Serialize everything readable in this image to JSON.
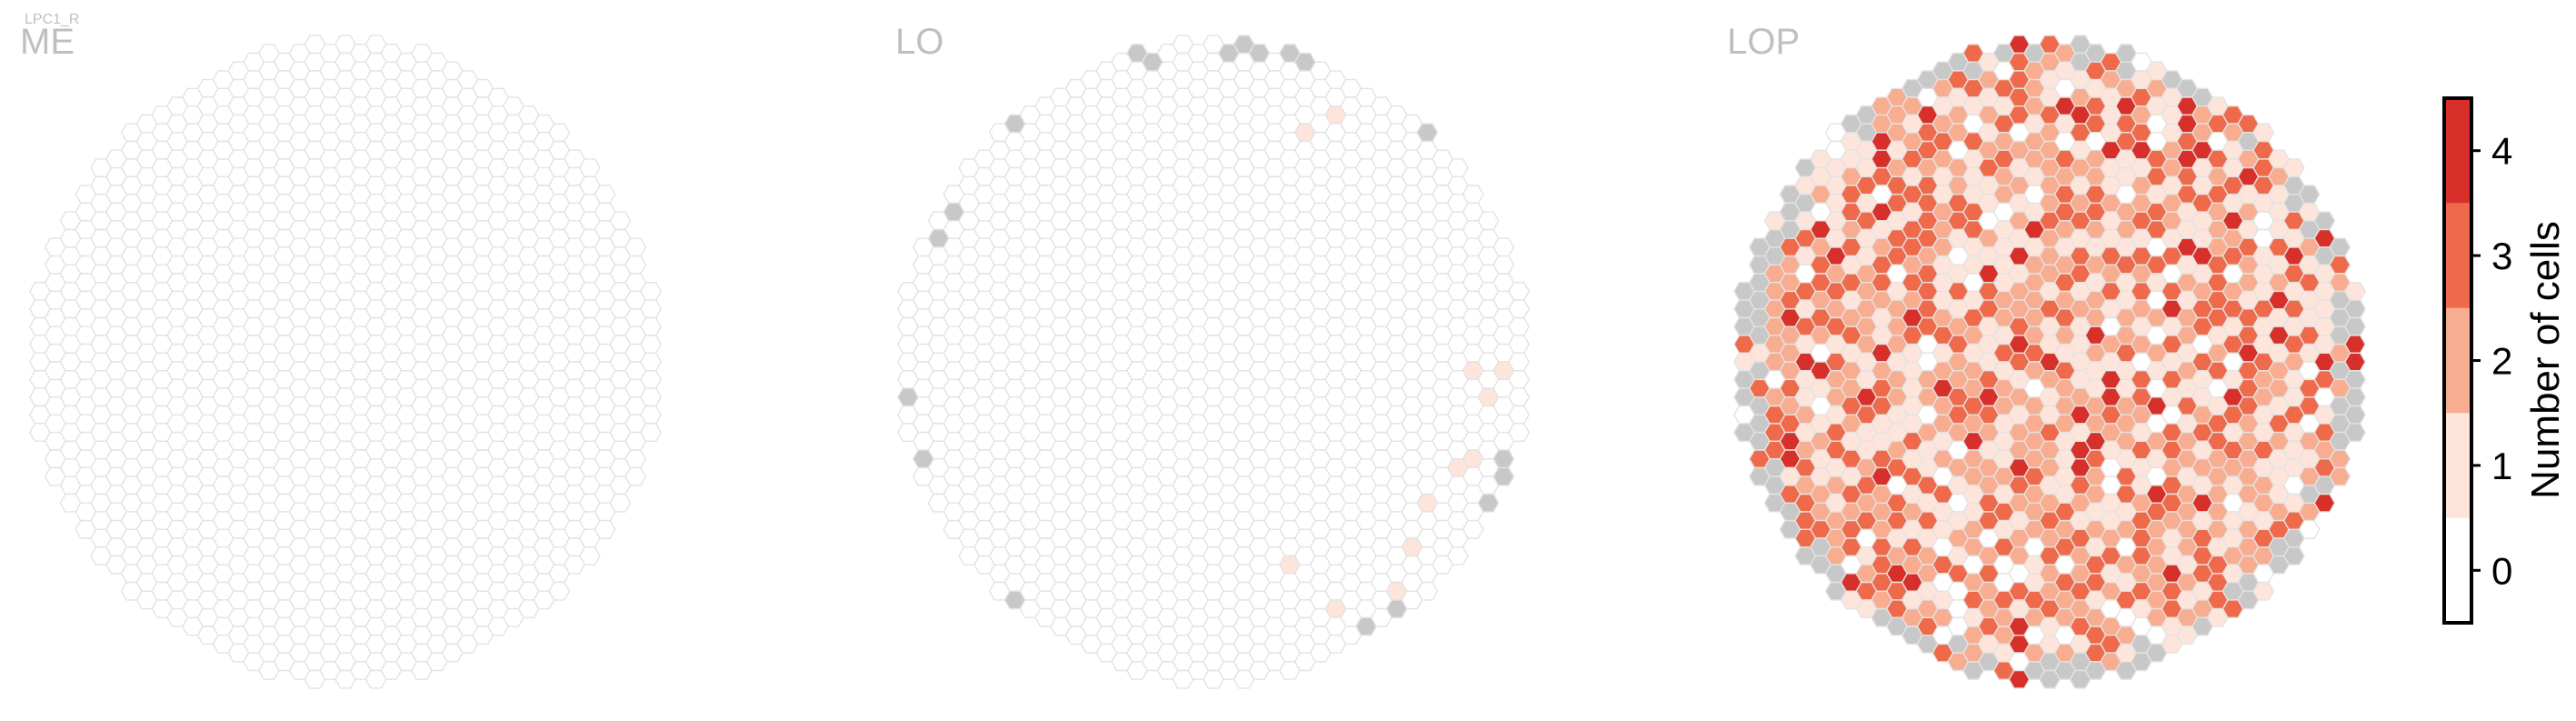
{
  "figure": {
    "cell_type": "LPC1_R"
  },
  "chart_data": {
    "type": "heatmap",
    "grid": "hexagonal column map of the right optic lobe",
    "panels": [
      {
        "id": "me",
        "title": "ME",
        "distribution": "no cells in any column (all hexagons empty)"
      },
      {
        "id": "lo",
        "title": "LO",
        "distribution": "sparse; a few columns with 1 cell on the right edge, grey columns along the rim"
      },
      {
        "id": "lop",
        "title": "LOP",
        "distribution": "dense; most columns 1-3 cells, scattered columns with 4, grey columns along the rim"
      }
    ],
    "colorbar": {
      "label": "Number of cells",
      "ticks": [
        "0",
        "1",
        "2",
        "3",
        "4"
      ],
      "range": [
        -0.5,
        4.5
      ],
      "colors": [
        "#ffffff",
        "#fde5db",
        "#f8ac90",
        "#ef6a4b",
        "#d7302a"
      ]
    },
    "colors": {
      "outline": "#e3e3e3",
      "rim_grey": "#c8c8c8"
    }
  }
}
